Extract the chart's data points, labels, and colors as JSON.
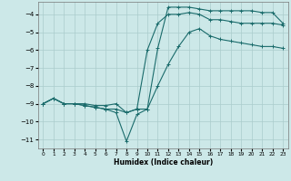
{
  "xlabel": "Humidex (Indice chaleur)",
  "background_color": "#cce8e8",
  "grid_color": "#aacccc",
  "line_color": "#1a6b6b",
  "xlim": [
    -0.5,
    23.5
  ],
  "ylim": [
    -11.5,
    -3.3
  ],
  "yticks": [
    -11,
    -10,
    -9,
    -8,
    -7,
    -6,
    -5,
    -4
  ],
  "xticks": [
    0,
    1,
    2,
    3,
    4,
    5,
    6,
    7,
    8,
    9,
    10,
    11,
    12,
    13,
    14,
    15,
    16,
    17,
    18,
    19,
    20,
    21,
    22,
    23
  ],
  "line1_x": [
    0,
    1,
    2,
    3,
    4,
    5,
    6,
    7,
    8,
    9,
    10,
    11,
    12,
    13,
    14,
    15,
    16,
    17,
    18,
    19,
    20,
    21,
    22,
    23
  ],
  "line1_y": [
    -9.0,
    -8.7,
    -9.0,
    -9.0,
    -9.0,
    -9.1,
    -9.1,
    -9.0,
    -9.5,
    -9.3,
    -9.3,
    -5.9,
    -3.6,
    -3.6,
    -3.6,
    -3.7,
    -3.8,
    -3.8,
    -3.8,
    -3.8,
    -3.8,
    -3.9,
    -3.9,
    -4.5
  ],
  "line2_x": [
    0,
    1,
    2,
    3,
    4,
    5,
    6,
    7,
    8,
    9,
    10,
    11,
    12,
    13,
    14,
    15,
    16,
    17,
    18,
    19,
    20,
    21,
    22,
    23
  ],
  "line2_y": [
    -9.0,
    -8.7,
    -9.0,
    -9.0,
    -9.1,
    -9.2,
    -9.3,
    -9.3,
    -9.5,
    -9.3,
    -6.0,
    -4.5,
    -4.0,
    -4.0,
    -3.9,
    -4.0,
    -4.3,
    -4.3,
    -4.4,
    -4.5,
    -4.5,
    -4.5,
    -4.5,
    -4.6
  ],
  "line3_x": [
    0,
    1,
    2,
    3,
    4,
    5,
    6,
    7,
    8,
    9,
    10,
    11,
    12,
    13,
    14,
    15,
    16,
    17,
    18,
    19,
    20,
    21,
    22,
    23
  ],
  "line3_y": [
    -9.0,
    -8.7,
    -9.0,
    -9.0,
    -9.1,
    -9.2,
    -9.3,
    -9.5,
    -11.1,
    -9.6,
    -9.3,
    -8.0,
    -6.8,
    -5.8,
    -5.0,
    -4.8,
    -5.2,
    -5.4,
    -5.5,
    -5.6,
    -5.7,
    -5.8,
    -5.8,
    -5.9
  ]
}
